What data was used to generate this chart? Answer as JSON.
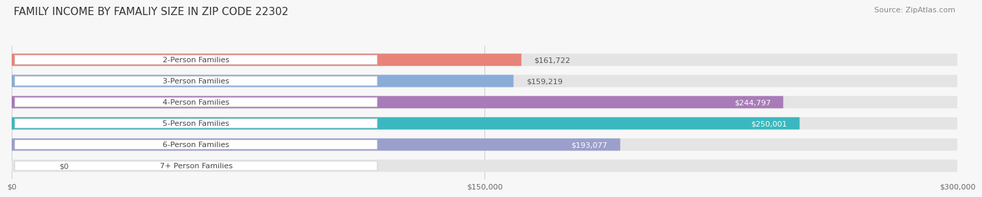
{
  "title": "FAMILY INCOME BY FAMALIY SIZE IN ZIP CODE 22302",
  "source": "Source: ZipAtlas.com",
  "categories": [
    "2-Person Families",
    "3-Person Families",
    "4-Person Families",
    "5-Person Families",
    "6-Person Families",
    "7+ Person Families"
  ],
  "values": [
    161722,
    159219,
    244797,
    250001,
    193077,
    0
  ],
  "labels": [
    "$161,722",
    "$159,219",
    "$244,797",
    "$250,001",
    "$193,077",
    "$0"
  ],
  "bar_colors": [
    "#E8837A",
    "#8AADD8",
    "#A87BB8",
    "#3BB8BF",
    "#9B9FCC",
    "#F2A0B8"
  ],
  "label_inside": [
    false,
    false,
    true,
    true,
    true,
    false
  ],
  "label_color_inside": "#ffffff",
  "label_color_outside": "#555555",
  "xmax": 300000,
  "xticklabels": [
    "$0",
    "$150,000",
    "$300,000"
  ],
  "bg_color": "#f7f7f7",
  "bar_bg_color": "#e4e4e4",
  "bar_height": 0.58,
  "title_fontsize": 11,
  "source_fontsize": 8,
  "label_fontsize": 8,
  "cat_fontsize": 8
}
